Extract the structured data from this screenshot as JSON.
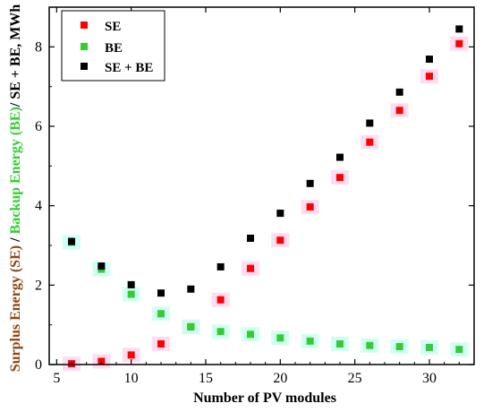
{
  "chart_data": {
    "type": "scatter",
    "xlabel": "Number of PV modules",
    "ylabel_parts": {
      "se": "Surplus Energy (SE)",
      "sep1": " / ",
      "be": "Backup Energy (BE)",
      "rest": "/ SE + BE, MWh"
    },
    "xlim": [
      4.5,
      33
    ],
    "ylim": [
      0,
      9
    ],
    "xticks": [
      5,
      10,
      15,
      20,
      25,
      30
    ],
    "yticks": [
      0,
      2,
      4,
      6,
      8
    ],
    "grid": false,
    "legend_position": "top-left",
    "x": [
      6,
      8,
      10,
      12,
      14,
      16,
      18,
      20,
      22,
      24,
      26,
      28,
      30,
      32
    ],
    "series": [
      {
        "name": "SE",
        "color": "#ff0000",
        "values": [
          0.02,
          0.08,
          0.24,
          0.52,
          0.95,
          1.63,
          2.42,
          3.13,
          3.97,
          4.71,
          5.6,
          6.4,
          7.26,
          8.08
        ]
      },
      {
        "name": "BE",
        "color": "#33cc33",
        "values": [
          3.08,
          2.4,
          1.77,
          1.28,
          0.95,
          0.83,
          0.76,
          0.67,
          0.59,
          0.52,
          0.48,
          0.45,
          0.43,
          0.38
        ]
      },
      {
        "name": "SE + BE",
        "color": "#000000",
        "values": [
          3.1,
          2.48,
          2.01,
          1.8,
          1.9,
          2.46,
          3.18,
          3.81,
          4.56,
          5.22,
          6.08,
          6.86,
          7.69,
          8.45
        ]
      }
    ],
    "label_colors": {
      "se": "#8B4513",
      "be": "#33cc33",
      "rest": "#000000"
    }
  }
}
